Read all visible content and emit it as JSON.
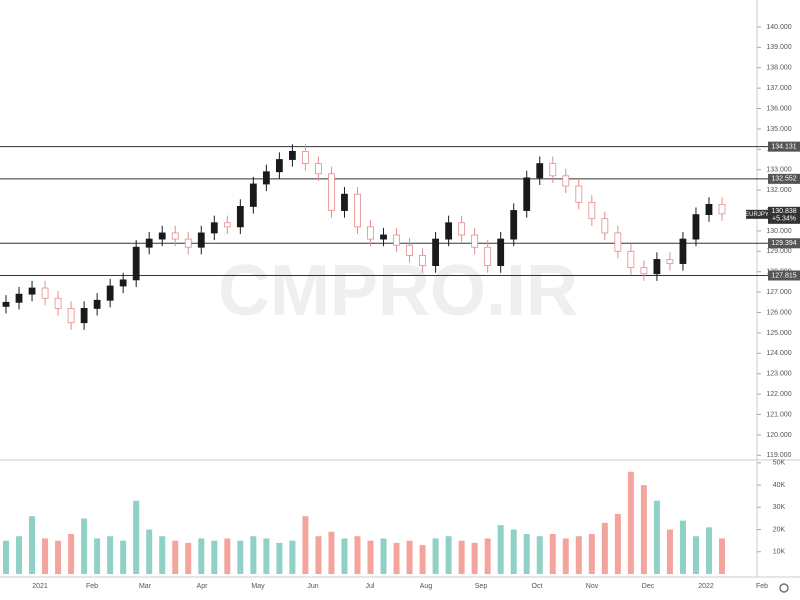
{
  "chart_data": {
    "type": "candlestick",
    "symbol": "EURJPY",
    "last_price": 130.838,
    "change": "+5.34%",
    "watermark": "CMPRO.IR",
    "open": [
      126.3,
      126.5,
      126.9,
      127.2,
      126.7,
      126.2,
      125.5,
      126.2,
      126.6,
      127.3,
      127.6,
      129.2,
      129.6,
      129.9,
      129.6,
      129.2,
      129.9,
      130.4,
      130.2,
      131.2,
      132.3,
      132.9,
      133.5,
      133.9,
      133.3,
      132.8,
      131.0,
      131.8,
      130.2,
      129.6,
      129.8,
      129.3,
      128.8,
      128.3,
      129.6,
      130.4,
      129.8,
      129.2,
      128.3,
      129.6,
      131.0,
      132.6,
      133.3,
      132.7,
      132.2,
      131.4,
      130.6,
      129.9,
      129.0,
      128.2,
      127.9,
      128.6,
      128.4,
      129.6,
      130.8,
      131.3
    ],
    "high": [
      126.85,
      127.25,
      127.55,
      127.55,
      127.05,
      126.55,
      126.55,
      126.95,
      127.65,
      127.95,
      129.55,
      129.95,
      130.25,
      130.25,
      129.95,
      130.25,
      130.75,
      130.75,
      131.55,
      132.65,
      133.25,
      133.85,
      134.25,
      134.25,
      133.65,
      133.15,
      132.15,
      132.15,
      130.55,
      130.15,
      130.15,
      129.65,
      129.15,
      129.95,
      130.75,
      130.75,
      130.15,
      129.55,
      129.95,
      131.35,
      132.95,
      133.65,
      133.65,
      133.05,
      132.55,
      131.75,
      130.95,
      130.25,
      129.35,
      128.55,
      128.95,
      128.95,
      129.95,
      131.15,
      131.65,
      131.65
    ],
    "low": [
      125.95,
      126.15,
      126.55,
      126.35,
      125.85,
      125.15,
      125.15,
      125.85,
      126.25,
      126.95,
      127.25,
      128.85,
      129.25,
      129.25,
      128.85,
      128.85,
      129.55,
      129.85,
      129.85,
      130.85,
      131.95,
      132.55,
      133.15,
      132.95,
      132.45,
      130.65,
      130.65,
      129.85,
      129.25,
      129.25,
      128.95,
      128.45,
      127.95,
      127.95,
      129.25,
      129.45,
      128.85,
      127.95,
      127.95,
      129.25,
      130.65,
      132.25,
      132.35,
      131.85,
      131.05,
      130.25,
      129.55,
      128.65,
      127.85,
      127.55,
      127.55,
      128.05,
      128.05,
      129.25,
      130.45,
      130.49
    ],
    "close": [
      126.5,
      126.9,
      127.2,
      126.7,
      126.2,
      125.5,
      126.2,
      126.6,
      127.3,
      127.6,
      129.2,
      129.6,
      129.9,
      129.6,
      129.2,
      129.9,
      130.4,
      130.2,
      131.2,
      132.3,
      132.9,
      133.5,
      133.9,
      133.3,
      132.8,
      131.0,
      131.8,
      130.2,
      129.6,
      129.8,
      129.3,
      128.8,
      128.3,
      129.6,
      130.4,
      129.8,
      129.2,
      128.3,
      129.6,
      131.0,
      132.6,
      133.3,
      132.7,
      132.2,
      131.4,
      130.6,
      129.9,
      129.0,
      128.2,
      127.9,
      128.6,
      128.4,
      129.6,
      130.8,
      131.3,
      130.838
    ],
    "ylim": [
      118.77,
      141.32
    ],
    "yticks": [
      {
        "value": 119,
        "label": "119.000"
      },
      {
        "value": 120,
        "label": "120.000"
      },
      {
        "value": 121,
        "label": "121.000"
      },
      {
        "value": 122,
        "label": "122.000"
      },
      {
        "value": 123,
        "label": "123.000"
      },
      {
        "value": 124,
        "label": "124.000"
      },
      {
        "value": 125,
        "label": "125.000"
      },
      {
        "value": 126,
        "label": "126.000"
      },
      {
        "value": 127,
        "label": "127.000"
      },
      {
        "value": 128,
        "label": "128.000"
      },
      {
        "value": 129,
        "label": "129.000"
      },
      {
        "value": 130,
        "label": "130.000"
      },
      {
        "value": 131,
        "label": "131.000"
      },
      {
        "value": 132,
        "label": "132.000"
      },
      {
        "value": 133,
        "label": "133.000"
      },
      {
        "value": 134,
        "label": "134.000"
      },
      {
        "value": 135,
        "label": "135.000"
      },
      {
        "value": 136,
        "label": "136.000"
      },
      {
        "value": 137,
        "label": "137.000"
      },
      {
        "value": 138,
        "label": "138.000"
      },
      {
        "value": 139,
        "label": "139.000"
      },
      {
        "value": 140,
        "label": "140.000"
      }
    ],
    "levels": [
      134.131,
      132.552,
      129.394,
      127.815
    ],
    "volume": {
      "values": [
        15000,
        17000,
        26000,
        16000,
        15000,
        18000,
        25000,
        16000,
        17000,
        15000,
        33000,
        20000,
        17000,
        15000,
        14000,
        16000,
        15000,
        16000,
        15000,
        17000,
        16000,
        14000,
        15000,
        26000,
        17000,
        19000,
        16000,
        17000,
        15000,
        16000,
        14000,
        15000,
        13000,
        16000,
        17000,
        15000,
        14000,
        16000,
        22000,
        20000,
        18000,
        17000,
        18000,
        16000,
        17000,
        18000,
        23000,
        27000,
        46000,
        40000,
        33000,
        20000,
        24000,
        17000,
        21000,
        16000
      ],
      "ylim": [
        0,
        51300
      ],
      "yticks": [
        {
          "value": 10000,
          "label": "10K"
        },
        {
          "value": 20000,
          "label": "20K"
        },
        {
          "value": 30000,
          "label": "30K"
        },
        {
          "value": 40000,
          "label": "40K"
        },
        {
          "value": 50000,
          "label": "50K"
        }
      ]
    },
    "xlabels": [
      "2021",
      "Feb",
      "Mar",
      "Apr",
      "May",
      "Jun",
      "Jul",
      "Aug",
      "Sep",
      "Oct",
      "Nov",
      "Dec",
      "2022",
      "Feb"
    ]
  }
}
